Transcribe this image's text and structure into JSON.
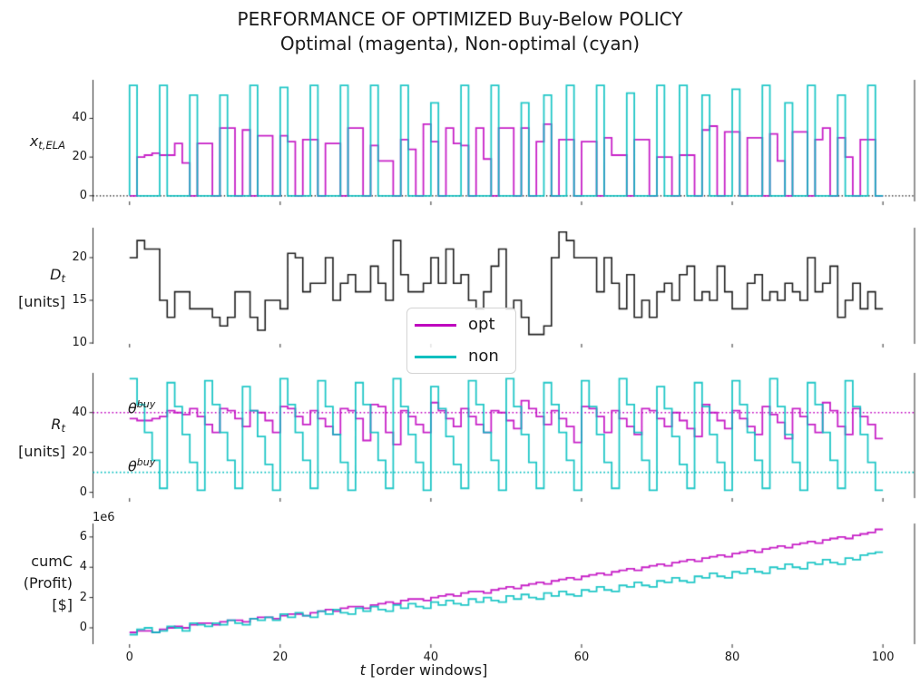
{
  "title": {
    "line1": "PERFORMANCE OF OPTIMIZED Buy-Below POLICY",
    "line2": "Optimal (magenta), Non-optimal (cyan)"
  },
  "xlabel": {
    "var": "t",
    "rest": " [order windows]"
  },
  "x_ticks": [
    0,
    20,
    40,
    60,
    80,
    100
  ],
  "xlim": [
    -4.85,
    104.2
  ],
  "legend": {
    "items": [
      {
        "label": "opt",
        "color": "#bf00bf"
      },
      {
        "label": "non",
        "color": "#00bfbf"
      }
    ]
  },
  "colors": {
    "opt": "#bf00bf",
    "non": "#00bfbf",
    "demand": "#1f1f1f",
    "spine": "#2a2a2a"
  },
  "chart_data": [
    {
      "id": "ela-orders",
      "type": "step",
      "ylabel": {
        "var": "x",
        "sub": "t,ELA"
      },
      "yticks": [
        0,
        20,
        40
      ],
      "ylim": [
        -2.9,
        59.9
      ],
      "x_start": 0,
      "x_step": 1,
      "zero_line": {
        "y": 0,
        "style": "dotted",
        "color": "#000000"
      },
      "series": [
        {
          "name": "opt",
          "color": "#bf00bf",
          "values": [
            0,
            20,
            21,
            22,
            21,
            21,
            27,
            17,
            0,
            27,
            27,
            0,
            35,
            35,
            0,
            34,
            0,
            31,
            31,
            0,
            31,
            28,
            0,
            29,
            29,
            0,
            27,
            27,
            0,
            35,
            35,
            0,
            26,
            18,
            18,
            0,
            29,
            24,
            0,
            37,
            28,
            0,
            35,
            27,
            26,
            0,
            35,
            19,
            0,
            35,
            35,
            0,
            35,
            0,
            28,
            37,
            0,
            29,
            29,
            0,
            28,
            28,
            0,
            30,
            21,
            21,
            0,
            29,
            29,
            0,
            20,
            20,
            0,
            21,
            21,
            0,
            34,
            36,
            0,
            33,
            33,
            0,
            30,
            30,
            0,
            32,
            18,
            0,
            33,
            33,
            0,
            29,
            35,
            0,
            30,
            20,
            0,
            29,
            29,
            0
          ]
        },
        {
          "name": "non",
          "color": "#00bfbf",
          "values": [
            57,
            0,
            0,
            0,
            57,
            0,
            0,
            0,
            52,
            0,
            0,
            0,
            52,
            0,
            0,
            0,
            57,
            0,
            0,
            0,
            56,
            0,
            0,
            0,
            57,
            0,
            0,
            0,
            57,
            0,
            0,
            0,
            57,
            0,
            0,
            0,
            57,
            0,
            0,
            0,
            48,
            0,
            0,
            0,
            57,
            0,
            0,
            0,
            57,
            0,
            0,
            0,
            48,
            0,
            0,
            52,
            0,
            0,
            57,
            0,
            0,
            0,
            57,
            0,
            0,
            0,
            53,
            0,
            0,
            0,
            57,
            0,
            0,
            57,
            0,
            0,
            52,
            0,
            0,
            0,
            55,
            0,
            0,
            0,
            57,
            0,
            0,
            48,
            0,
            0,
            57,
            0,
            0,
            0,
            52,
            0,
            0,
            0,
            57,
            0
          ]
        }
      ]
    },
    {
      "id": "demand",
      "type": "step",
      "ylabel": {
        "var": "D",
        "sub": "t",
        "unit": "[units]"
      },
      "yticks": [
        10,
        15,
        20
      ],
      "ylim": [
        9.9,
        23.5
      ],
      "x_start": 0,
      "x_step": 1,
      "series": [
        {
          "name": "demand",
          "color": "#1f1f1f",
          "values": [
            20,
            22,
            21,
            21,
            15,
            13,
            16,
            16,
            14,
            14,
            14,
            13,
            12,
            13,
            16,
            16,
            13,
            11.5,
            15,
            15,
            14,
            20.5,
            20,
            16,
            17,
            17,
            20,
            15,
            17,
            18,
            16,
            16,
            19,
            17,
            15,
            22,
            18,
            16,
            16,
            17,
            20,
            17,
            21,
            17,
            18,
            15,
            14,
            16,
            19,
            21,
            14,
            15,
            13,
            11,
            11,
            12,
            20,
            23,
            22,
            20,
            20,
            20,
            16,
            20,
            17,
            14,
            18,
            13,
            15,
            13,
            16,
            17,
            15,
            18,
            19,
            15,
            16,
            15,
            19,
            16,
            14,
            14,
            17,
            18,
            15,
            16,
            15,
            17,
            16,
            15,
            20,
            16,
            17,
            19,
            13,
            15,
            17,
            14,
            16,
            14
          ]
        }
      ]
    },
    {
      "id": "inventory-position",
      "type": "step",
      "ylabel": {
        "var": "R",
        "sub": "t",
        "unit": "[units]"
      },
      "yticks": [
        0,
        20,
        40
      ],
      "ylim": [
        -2.9,
        59.9
      ],
      "x_start": 0,
      "x_step": 1,
      "thresholds": [
        {
          "y": 40,
          "color": "#bf00bf",
          "style": "dotted",
          "label_var": "θ",
          "label_sup": "buy"
        },
        {
          "y": 10,
          "color": "#00bfbf",
          "style": "dotted",
          "label_var": "θ",
          "label_sup": "buy"
        }
      ],
      "series": [
        {
          "name": "opt",
          "color": "#bf00bf",
          "values": [
            37,
            36,
            36,
            37,
            38,
            41,
            40,
            39,
            42,
            38,
            34,
            30,
            42,
            41,
            37,
            33,
            41,
            40,
            36,
            30,
            43,
            42,
            38,
            34,
            41,
            37,
            33,
            29,
            42,
            41,
            37,
            26,
            44,
            43,
            30,
            24,
            41,
            38,
            34,
            30,
            45,
            41,
            37,
            33,
            42,
            38,
            34,
            30,
            41,
            40,
            36,
            32,
            46,
            42,
            38,
            34,
            41,
            37,
            33,
            25,
            43,
            42,
            38,
            30,
            41,
            37,
            33,
            29,
            42,
            41,
            37,
            33,
            40,
            36,
            32,
            28,
            44,
            40,
            36,
            32,
            41,
            37,
            33,
            29,
            43,
            39,
            35,
            27,
            42,
            38,
            34,
            30,
            45,
            41,
            33,
            29,
            42,
            38,
            34,
            27
          ]
        },
        {
          "name": "non",
          "color": "#00bfbf",
          "values": [
            57,
            44,
            30,
            16,
            2,
            55,
            43,
            29,
            15,
            1,
            56,
            44,
            30,
            16,
            2,
            53,
            41,
            28,
            14,
            1,
            57,
            44,
            30,
            16,
            2,
            56,
            43,
            29,
            15,
            1,
            55,
            44,
            30,
            16,
            2,
            57,
            43,
            29,
            15,
            1,
            53,
            42,
            28,
            14,
            2,
            56,
            44,
            30,
            16,
            1,
            57,
            43,
            29,
            15,
            2,
            55,
            44,
            30,
            16,
            1,
            56,
            43,
            29,
            15,
            2,
            57,
            44,
            30,
            16,
            1,
            53,
            42,
            28,
            14,
            2,
            55,
            43,
            29,
            15,
            1,
            56,
            44,
            30,
            16,
            2,
            57,
            43,
            29,
            15,
            1,
            55,
            44,
            30,
            16,
            2,
            56,
            43,
            29,
            15,
            1
          ]
        }
      ]
    },
    {
      "id": "cumulative-profit",
      "type": "step",
      "ylabel": {
        "lines": [
          "cumC",
          "(Profit)",
          "[$]"
        ]
      },
      "offset_text": "1e6",
      "unit_scale": 1000000,
      "yticks": [
        0,
        2,
        4,
        6
      ],
      "ylim": [
        -1.08,
        6.89
      ],
      "x_start": 0,
      "x_step": 1,
      "series": [
        {
          "name": "opt",
          "color": "#bf00bf",
          "values": [
            -0.3,
            -0.2,
            -0.2,
            -0.3,
            -0.1,
            0.0,
            0.1,
            0.0,
            0.2,
            0.3,
            0.3,
            0.2,
            0.4,
            0.5,
            0.5,
            0.4,
            0.6,
            0.7,
            0.7,
            0.6,
            0.8,
            0.9,
            0.9,
            0.8,
            1.0,
            1.1,
            1.2,
            1.1,
            1.3,
            1.4,
            1.4,
            1.3,
            1.5,
            1.6,
            1.7,
            1.6,
            1.8,
            1.9,
            1.9,
            1.8,
            2.0,
            2.1,
            2.2,
            2.1,
            2.3,
            2.4,
            2.4,
            2.3,
            2.5,
            2.6,
            2.7,
            2.6,
            2.8,
            2.9,
            3.0,
            2.9,
            3.1,
            3.2,
            3.3,
            3.2,
            3.4,
            3.5,
            3.6,
            3.5,
            3.7,
            3.8,
            3.9,
            3.8,
            4.0,
            4.1,
            4.2,
            4.1,
            4.3,
            4.4,
            4.5,
            4.4,
            4.6,
            4.7,
            4.8,
            4.7,
            4.9,
            5.0,
            5.1,
            5.0,
            5.2,
            5.3,
            5.4,
            5.3,
            5.5,
            5.6,
            5.7,
            5.6,
            5.8,
            5.9,
            6.0,
            5.9,
            6.1,
            6.2,
            6.3,
            6.5
          ]
        },
        {
          "name": "non",
          "color": "#00bfbf",
          "values": [
            -0.45,
            -0.1,
            0.0,
            -0.3,
            -0.2,
            0.1,
            0.0,
            -0.2,
            0.3,
            0.2,
            0.1,
            0.3,
            0.2,
            0.5,
            0.3,
            0.2,
            0.6,
            0.5,
            0.7,
            0.5,
            0.9,
            0.7,
            1.0,
            0.8,
            0.7,
            1.1,
            0.9,
            1.2,
            1.0,
            0.9,
            1.3,
            1.1,
            1.4,
            1.2,
            1.1,
            1.5,
            1.3,
            1.6,
            1.4,
            1.3,
            1.7,
            1.5,
            1.8,
            1.6,
            1.5,
            1.9,
            1.7,
            2.0,
            1.8,
            1.7,
            2.1,
            1.9,
            2.2,
            2.0,
            1.9,
            2.3,
            2.1,
            2.4,
            2.2,
            2.1,
            2.5,
            2.4,
            2.7,
            2.5,
            2.4,
            2.8,
            2.7,
            3.0,
            2.8,
            2.7,
            3.1,
            3.0,
            3.3,
            3.1,
            3.0,
            3.4,
            3.3,
            3.6,
            3.4,
            3.3,
            3.7,
            3.6,
            3.9,
            3.7,
            3.6,
            4.0,
            3.9,
            4.2,
            4.0,
            3.9,
            4.3,
            4.2,
            4.5,
            4.3,
            4.2,
            4.6,
            4.5,
            4.8,
            4.9,
            5.0
          ]
        }
      ]
    }
  ]
}
